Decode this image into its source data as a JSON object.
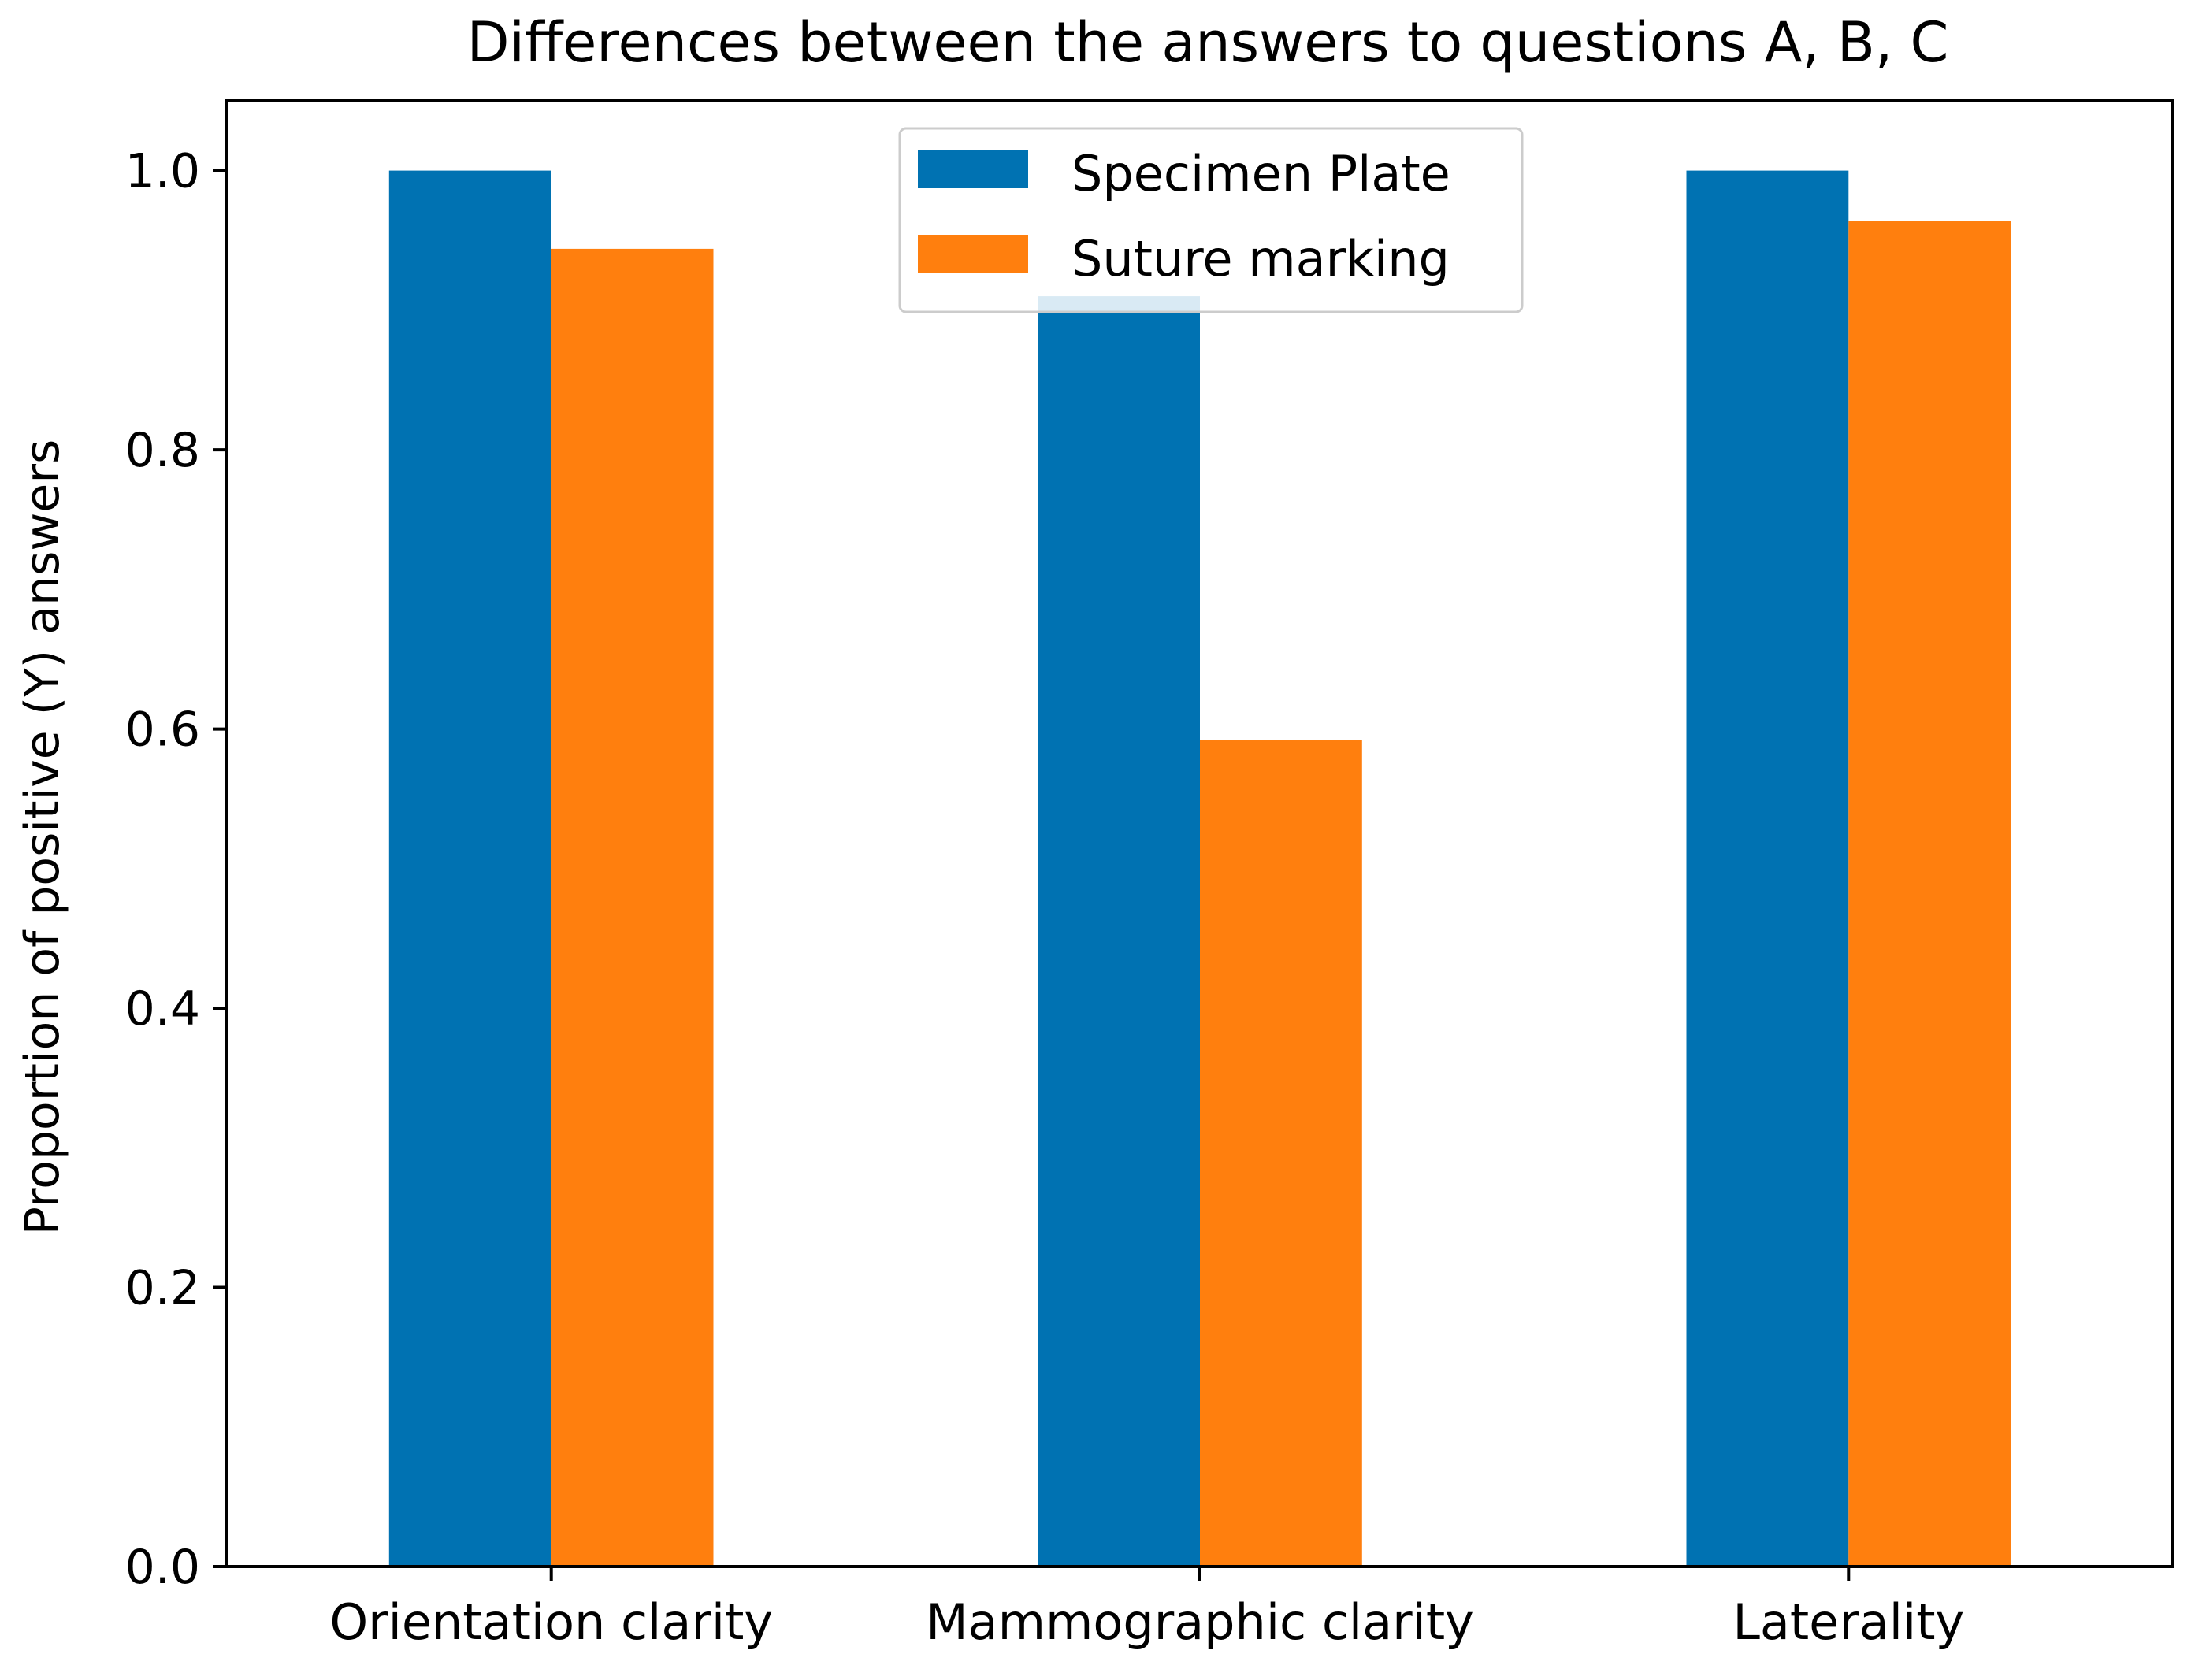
{
  "chart_data": {
    "type": "bar",
    "title": "Differences between the answers to questions A, B, C",
    "xlabel": "",
    "ylabel": "Proportion of positive (Y) answers",
    "categories": [
      "Orientation clarity",
      "Mammographic clarity",
      "Laterality"
    ],
    "series": [
      {
        "name": "Specimen Plate",
        "color": "#0072B2",
        "values": [
          1.0,
          0.91,
          1.0
        ]
      },
      {
        "name": "Suture marking",
        "color": "#FF7F0E",
        "values": [
          0.944,
          0.592,
          0.964
        ]
      }
    ],
    "ylim": [
      0,
      1.05
    ],
    "yticks": [
      "0.0",
      "0.2",
      "0.4",
      "0.6",
      "0.8",
      "1.0"
    ],
    "ytick_values": [
      0.0,
      0.2,
      0.4,
      0.6,
      0.8,
      1.0
    ],
    "grid": false,
    "legend_position": "upper-center"
  }
}
